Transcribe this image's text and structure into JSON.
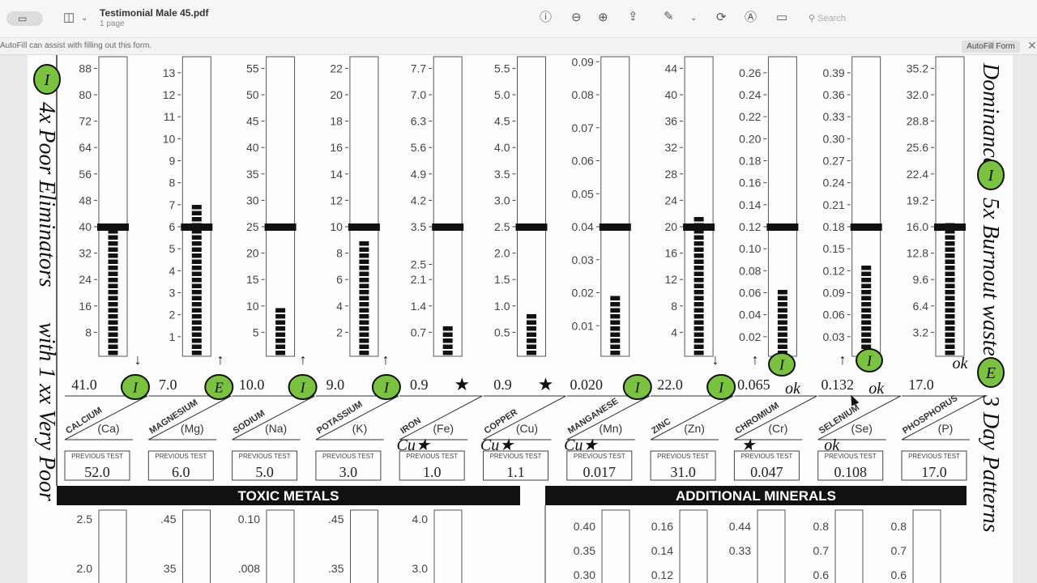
{
  "window": {
    "title": "Testimonial Male 45.pdf",
    "subtitle": "1 page",
    "search_placeholder": "Search"
  },
  "toolbar": {
    "icons": [
      "sidebar-toggle-icon",
      "sidebar-view-icon",
      "chevron-down-icon",
      "info-icon",
      "zoom-out-icon",
      "zoom-in-icon",
      "share-icon",
      "highlight-pen-icon",
      "chevron-down-icon",
      "rotate-icon",
      "markup-icon",
      "form-fill-icon",
      "search-icon"
    ]
  },
  "infobar": {
    "text": "AutoFill can assist with filling out this form.",
    "button": "AutoFill Form"
  },
  "chart_data": {
    "type": "bar",
    "reference_level_color": "#000000",
    "highlight_color": "#7cc242",
    "minerals": [
      {
        "name": "CALCIUM",
        "symbol": "(Ca)",
        "value": 41.0,
        "label": "41.0",
        "ref": 40,
        "previous": "52.0",
        "ticks": [
          "88",
          "80",
          "72",
          "64",
          "56",
          "48",
          "40",
          "32",
          "24",
          "16",
          "8"
        ],
        "mark": "I"
      },
      {
        "name": "MAGNESIUM",
        "symbol": "(Mg)",
        "value": 7.0,
        "label": "7.0",
        "ref": 6,
        "previous": "6.0",
        "ticks": [
          "13",
          "12",
          "11",
          "10",
          "9",
          "8",
          "7",
          "6",
          "5",
          "4",
          "3",
          "2",
          "1"
        ],
        "mark": "E"
      },
      {
        "name": "SODIUM",
        "symbol": "(Na)",
        "value": 10.0,
        "label": "10.0",
        "ref": 25,
        "previous": "5.0",
        "ticks": [
          "55",
          "50",
          "45",
          "40",
          "35",
          "30",
          "25",
          "20",
          "15",
          "10",
          "5"
        ],
        "mark": "I"
      },
      {
        "name": "POTASSIUM",
        "symbol": "(K)",
        "value": 9.0,
        "label": "9.0",
        "ref": 10,
        "previous": "3.0",
        "ticks": [
          "22",
          "20",
          "18",
          "16",
          "14",
          "12",
          "10",
          "8",
          "6",
          "4",
          "2"
        ],
        "mark": "I"
      },
      {
        "name": "IRON",
        "symbol": "(Fe)",
        "value": 0.9,
        "label": "0.9",
        "ref": 3.5,
        "previous": "1.0",
        "ticks": [
          "7.7",
          "7.0",
          "6.3",
          "5.6",
          "4.9",
          "4.2",
          "3.5",
          "2.5",
          "2.1",
          "1.4",
          "0.7"
        ],
        "mark": "★",
        "note": "Cu★"
      },
      {
        "name": "COPPER",
        "symbol": "(Cu)",
        "value": 0.9,
        "label": "0.9",
        "ref": 2.5,
        "previous": "1.1",
        "ticks": [
          "5.5",
          "5.0",
          "4.5",
          "4.0",
          "3.5",
          "3.0",
          "2.5",
          "2.0",
          "1.5",
          "1.0",
          "0.5"
        ],
        "mark": "★",
        "note": "Cu★"
      },
      {
        "name": "MANGANESE",
        "symbol": "(Mn)",
        "value": 0.02,
        "label": "0.020",
        "ref": 0.04,
        "previous": "0.017",
        "ticks": [
          "0.09",
          "0.08",
          "0.07",
          "0.06",
          "0.05",
          "0.04",
          "0.03",
          "0.02",
          "0.01"
        ],
        "mark": "I",
        "note": "Cu★"
      },
      {
        "name": "ZINC",
        "symbol": "(Zn)",
        "value": 22.0,
        "label": "22.0",
        "ref": 20,
        "previous": "31.0",
        "ticks": [
          "44",
          "40",
          "36",
          "32",
          "28",
          "24",
          "20",
          "16",
          "12",
          "8",
          "4"
        ],
        "mark": "I"
      },
      {
        "name": "CHROMIUM",
        "symbol": "(Cr)",
        "value": 0.065,
        "label": "0.065",
        "ref": 0.12,
        "previous": "0.047",
        "ticks": [
          "0.26",
          "0.24",
          "0.22",
          "0.20",
          "0.18",
          "0.16",
          "0.14",
          "0.12",
          "0.10",
          "0.08",
          "0.06",
          "0.04",
          "0.02"
        ],
        "mark": "ok",
        "note": "★"
      },
      {
        "name": "SELENIUM",
        "symbol": "(Se)",
        "value": 0.132,
        "label": "0.132",
        "ref": 0.18,
        "previous": "0.108",
        "ticks": [
          "0.39",
          "0.36",
          "0.33",
          "0.30",
          "0.27",
          "0.24",
          "0.21",
          "0.18",
          "0.15",
          "0.12",
          "0.09",
          "0.06",
          "0.03"
        ],
        "mark": "ok",
        "note": "ok"
      },
      {
        "name": "PHOSPHORUS",
        "symbol": "(P)",
        "value": 17.0,
        "label": "17.0",
        "ref": 16,
        "previous": "17.0",
        "ticks": [
          "35.2",
          "32.0",
          "28.8",
          "25.6",
          "22.4",
          "19.2",
          "16.0",
          "12.8",
          "9.6",
          "6.4",
          "3.2"
        ],
        "mark": "ok"
      }
    ],
    "previous_label": "PREVIOUS TEST",
    "sections": [
      {
        "title": "TOXIC METALS",
        "columns": [
          [
            "2.5",
            "2.0"
          ],
          [
            ".45",
            "35"
          ],
          [
            "0.10",
            ".008"
          ],
          [
            ".45",
            ".35"
          ],
          [
            "4.0",
            "3.0"
          ]
        ]
      },
      {
        "title": "ADDITIONAL MINERALS",
        "columns": [
          [
            "0.40",
            "0.35",
            "0.30"
          ],
          [
            "0.16",
            "0.14",
            "0.12"
          ],
          [
            "0.44",
            "0.33"
          ],
          [
            "0.8",
            "0.7",
            "0.6"
          ],
          [
            "0.8",
            "0.7",
            "0.6"
          ]
        ]
      }
    ],
    "handwritten_notes": [
      "Dominance",
      "5x Burnout waste",
      "3 Day Patterns",
      "4x Poor Eliminators",
      "with 1 xx Very Poor"
    ]
  }
}
